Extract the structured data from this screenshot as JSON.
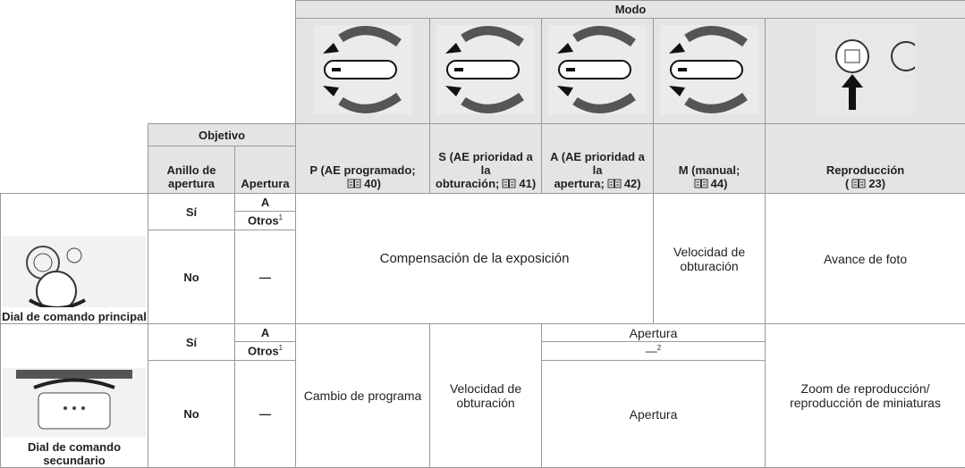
{
  "header": {
    "mode": "Modo",
    "lens": "Objetivo",
    "ring": "Anillo de apertura",
    "aperture": "Apertura"
  },
  "modes": [
    {
      "line1": "P (AE programado;",
      "page": "40)"
    },
    {
      "line1": "S (AE prioridad a la",
      "line2": "obturación;",
      "page": "41)"
    },
    {
      "line1": "A (AE prioridad a la",
      "line2": "apertura;",
      "page": "42)"
    },
    {
      "line1": "M (manual;",
      "page": "44)"
    },
    {
      "line1": "Reproducción",
      "prefix": "(",
      "page": "23)"
    }
  ],
  "dials": [
    {
      "label": "Dial de comando principal",
      "yes": "Sí",
      "a": "A",
      "other": "Otros",
      "note": "1",
      "no": "No",
      "dash": "—",
      "cells": [
        "Compensación de la exposición",
        "Velocidad de obturación",
        "Avance de foto"
      ]
    },
    {
      "label": "Dial de comando secundario",
      "yes": "Sí",
      "a": "A",
      "other": "Otros",
      "note": "1",
      "no": "No",
      "dash": "—",
      "cells": [
        "Cambio de programa",
        "Velocidad de obturación",
        "Apertura",
        "—",
        "2",
        "Apertura",
        "Zoom de reproducción/ reproducción de miniaturas"
      ]
    }
  ]
}
